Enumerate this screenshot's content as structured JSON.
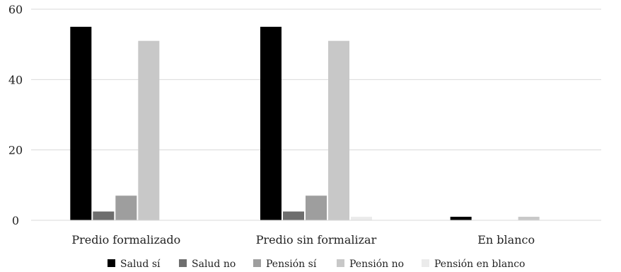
{
  "chart_data": {
    "type": "bar",
    "categories": [
      "Predio formalizado",
      "Predio sin formalizar",
      "En blanco"
    ],
    "series": [
      {
        "name": "Salud sí",
        "values": [
          55,
          55,
          1
        ],
        "color": "#000000"
      },
      {
        "name": "Salud no",
        "values": [
          2.5,
          2.5,
          0
        ],
        "color": "#6e6e6e"
      },
      {
        "name": "Pensión sí",
        "values": [
          7,
          7,
          0
        ],
        "color": "#9e9e9e"
      },
      {
        "name": "Pensión no",
        "values": [
          51,
          51,
          1
        ],
        "color": "#c8c8c8"
      },
      {
        "name": "Pensión en blanco",
        "values": [
          0,
          1,
          0
        ],
        "color": "#ebebeb"
      }
    ],
    "y_ticks": [
      0,
      20,
      40,
      60
    ],
    "ylim": [
      0,
      60
    ],
    "grid": true,
    "legend_position": "bottom"
  }
}
